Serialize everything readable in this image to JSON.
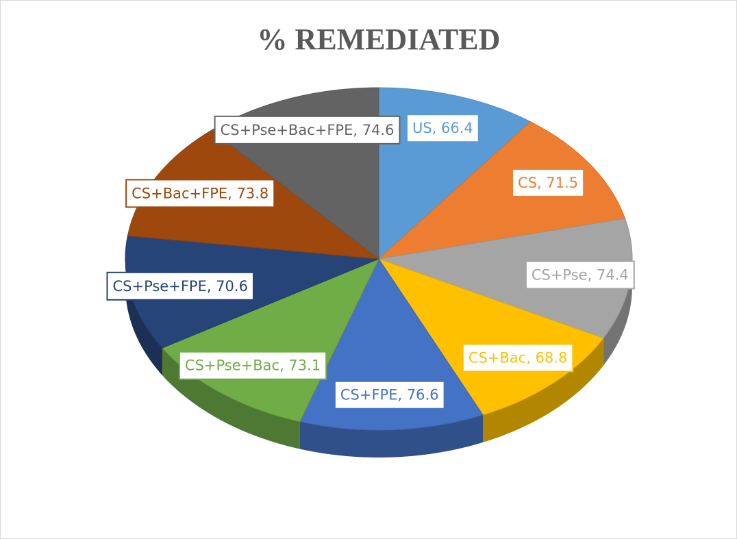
{
  "chart_data": {
    "type": "pie3d",
    "title": "% REMEDIATED",
    "values": [
      66.4,
      71.5,
      74.4,
      68.8,
      76.6,
      73.1,
      70.6,
      73.8,
      74.6
    ],
    "value_labels": [
      "US, 66.4",
      "CS, 71.5",
      "CS+Pse, 74.4",
      "CS+Bac, 68.8",
      "CS+FPE, 76.6",
      "CS+Pse+Bac, 73.1",
      "CS+Pse+FPE, 70.6",
      "CS+Bac+FPE, 73.8",
      "CS+Pse+Bac+FPE, 74.6"
    ],
    "colors": [
      "#5b9bd5",
      "#ed7d31",
      "#a5a5a5",
      "#ffc000",
      "#4472c4",
      "#70ad47",
      "#264478",
      "#9e480e",
      "#636363"
    ]
  }
}
